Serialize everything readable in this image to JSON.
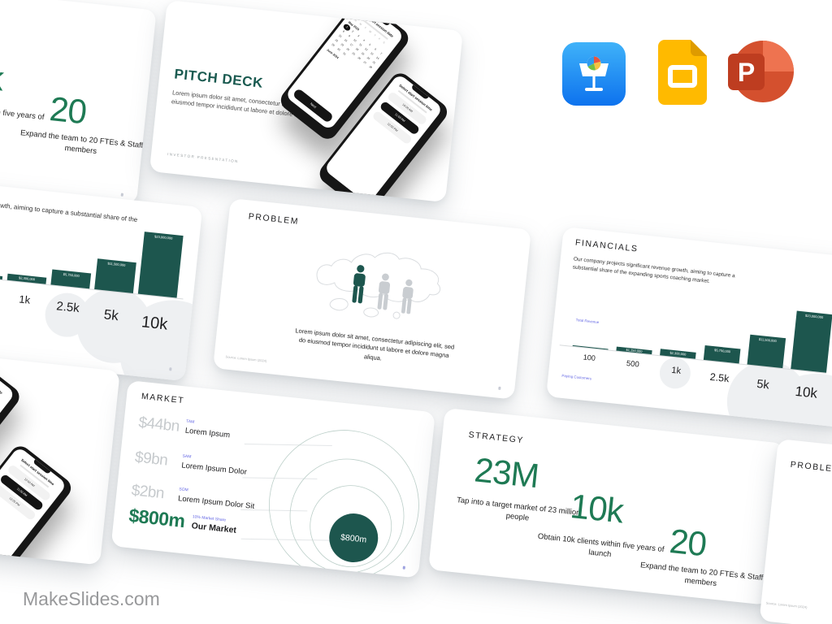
{
  "brand": {
    "site_name": "MakeSlides.com"
  },
  "app_icons": {
    "keynote": "Keynote",
    "google_slides": "Google Slides",
    "powerpoint": "PowerPoint"
  },
  "colors": {
    "accent_teal": "#1D564E",
    "accent_green": "#1E7A54",
    "accent_indigo": "#6568E4"
  },
  "slides": {
    "pitch_deck": {
      "title": "PITCH DECK",
      "body": "Lorem ipsum dolor sit amet, consectetur adipiscing elit, sed do eiusmod tempor incididunt ut labore et dolore magna aliqua",
      "footer": "INVESTOR PRESENTATION"
    },
    "phone_date": {
      "header": "Select start session date",
      "weekdays": "S M T W T F S",
      "month_current": "May 2024",
      "month_next": "June 2024",
      "next_button": "Next",
      "days_in_month": 31,
      "selected_day": 1
    },
    "phone_time": {
      "header": "Select start session time",
      "options": [
        "10:00 AM",
        "11:00 AM",
        "12:00 PM"
      ],
      "selected_option": "11:00 AM"
    },
    "problem": {
      "title": "PROBLEM",
      "body": "Lorem ipsum dolor sit amet, consectetur adipiscing elit, sed do eiusmod tempor incididunt ut labore et dolore magna aliqua.",
      "source": "Source: Lorem Ipsum (2024)"
    },
    "financials": {
      "title": "FINANCIALS",
      "body": "Our company projects significant revenue growth, aiming to capture a substantial share of the expanding sports coaching market.",
      "y_axis_label": "Total Revenue",
      "x_axis_label": "Paying Customers"
    },
    "market": {
      "title": "MARKET",
      "rows": [
        {
          "value": "$44bn",
          "tag": "TAM",
          "label": "Lorem Ipsum"
        },
        {
          "value": "$9bn",
          "tag": "SAM",
          "label": "Lorem Ipsum Dolor"
        },
        {
          "value": "$2bn",
          "tag": "SOM",
          "label": "Lorem Ipsum Dolor Sit"
        },
        {
          "value": "$800m",
          "tag": "10% Market Share",
          "label": "Our Market"
        }
      ],
      "bubble_label": "$800m"
    },
    "strategy": {
      "title": "STRATEGY",
      "stats": [
        {
          "value": "23M",
          "caption": "Tap into a target market of 23 million people"
        },
        {
          "value": "10k",
          "caption": "Obtain 10k clients within five years of launch"
        },
        {
          "value": "20",
          "caption": "Expand the team to 20 FTEs & Staff members"
        }
      ]
    }
  },
  "chart_data": {
    "type": "bar",
    "title": "FINANCIALS",
    "categories": [
      "100",
      "500",
      "1k",
      "2.5k",
      "5k",
      "10k"
    ],
    "values": [
      230000,
      1150000,
      2300000,
      5750000,
      11500000,
      23000000
    ],
    "bar_labels": [
      "",
      "$1,150,000",
      "$2,300,000",
      "$5,750,000",
      "$11,500,000",
      "$23,000,000"
    ],
    "xlabel": "Paying Customers",
    "ylabel": "Total Revenue",
    "bar_color": "#1D564E",
    "grid": false,
    "legend": false
  }
}
